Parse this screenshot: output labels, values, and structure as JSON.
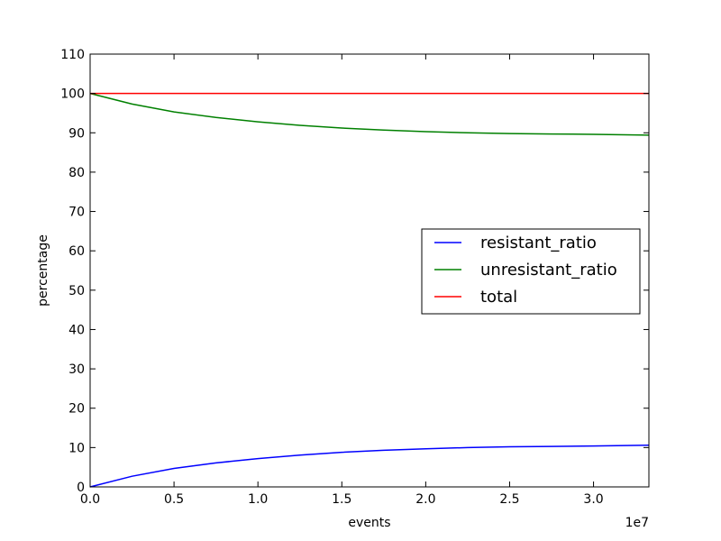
{
  "chart_data": {
    "type": "line",
    "title": "",
    "xlabel": "events",
    "ylabel": "percentage",
    "x_offset_label": "1e7",
    "xlim": [
      0,
      3.33
    ],
    "ylim": [
      0,
      110
    ],
    "x_ticks": [
      0.0,
      0.5,
      1.0,
      1.5,
      2.0,
      2.5,
      3.0
    ],
    "x_tick_labels": [
      "0.0",
      "0.5",
      "1.0",
      "1.5",
      "2.0",
      "2.5",
      "3.0"
    ],
    "y_ticks": [
      0,
      10,
      20,
      30,
      40,
      50,
      60,
      70,
      80,
      90,
      100,
      110
    ],
    "y_tick_labels": [
      "0",
      "10",
      "20",
      "30",
      "40",
      "50",
      "60",
      "70",
      "80",
      "90",
      "100",
      "110"
    ],
    "grid": false,
    "legend_position": "center-right",
    "series": [
      {
        "name": "resistant_ratio",
        "color": "#0000ff",
        "x": [
          0,
          0.25,
          0.5,
          0.75,
          1.0,
          1.25,
          1.5,
          1.75,
          2.0,
          2.25,
          2.5,
          2.75,
          3.0,
          3.33
        ],
        "y": [
          0,
          2.7,
          4.7,
          6.1,
          7.2,
          8.1,
          8.8,
          9.3,
          9.7,
          10.0,
          10.2,
          10.3,
          10.4,
          10.6
        ]
      },
      {
        "name": "unresistant_ratio",
        "color": "#008000",
        "x": [
          0,
          0.25,
          0.5,
          0.75,
          1.0,
          1.25,
          1.5,
          1.75,
          2.0,
          2.25,
          2.5,
          2.75,
          3.0,
          3.33
        ],
        "y": [
          100,
          97.3,
          95.3,
          93.9,
          92.8,
          91.9,
          91.2,
          90.7,
          90.3,
          90.0,
          89.8,
          89.7,
          89.6,
          89.4
        ]
      },
      {
        "name": "total",
        "color": "#ff0000",
        "x": [
          0,
          3.33
        ],
        "y": [
          100,
          100
        ]
      }
    ]
  }
}
